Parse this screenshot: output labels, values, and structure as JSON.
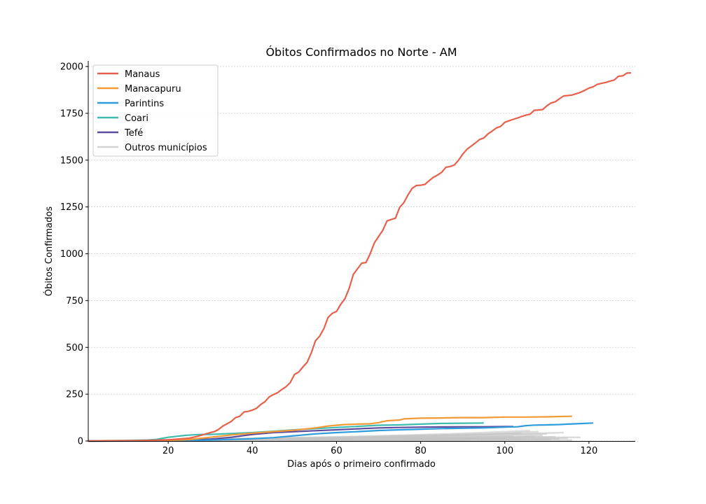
{
  "chart_data": {
    "type": "line",
    "title": "Óbitos Confirmados no Norte - AM",
    "xlabel": "Dias após o primeiro confirmado",
    "ylabel": "Óbitos Confirmados",
    "xlim": [
      1,
      131
    ],
    "ylim": [
      0,
      2030
    ],
    "xticks": [
      20,
      40,
      60,
      80,
      100,
      120
    ],
    "yticks": [
      0,
      250,
      500,
      750,
      1000,
      1250,
      1500,
      1750,
      2000
    ],
    "grid": "horizontal dashed",
    "legend_position": "top-left",
    "series": [
      {
        "name": "Manaus",
        "color": "#e8604c",
        "points": [
          [
            1,
            0
          ],
          [
            10,
            1
          ],
          [
            15,
            3
          ],
          [
            20,
            6
          ],
          [
            22,
            10
          ],
          [
            25,
            15
          ],
          [
            27,
            25
          ],
          [
            29,
            38
          ],
          [
            30,
            45
          ],
          [
            31,
            50
          ],
          [
            32,
            62
          ],
          [
            33,
            80
          ],
          [
            34,
            92
          ],
          [
            35,
            105
          ],
          [
            36,
            125
          ],
          [
            37,
            132
          ],
          [
            38,
            155
          ],
          [
            39,
            158
          ],
          [
            40,
            165
          ],
          [
            41,
            175
          ],
          [
            42,
            195
          ],
          [
            43,
            210
          ],
          [
            44,
            235
          ],
          [
            45,
            248
          ],
          [
            46,
            258
          ],
          [
            47,
            275
          ],
          [
            48,
            290
          ],
          [
            49,
            312
          ],
          [
            50,
            355
          ],
          [
            51,
            368
          ],
          [
            52,
            395
          ],
          [
            53,
            420
          ],
          [
            54,
            470
          ],
          [
            55,
            535
          ],
          [
            56,
            560
          ],
          [
            57,
            600
          ],
          [
            58,
            660
          ],
          [
            59,
            682
          ],
          [
            60,
            692
          ],
          [
            61,
            730
          ],
          [
            62,
            760
          ],
          [
            63,
            815
          ],
          [
            64,
            890
          ],
          [
            65,
            920
          ],
          [
            66,
            950
          ],
          [
            67,
            953
          ],
          [
            68,
            1000
          ],
          [
            69,
            1058
          ],
          [
            70,
            1092
          ],
          [
            71,
            1125
          ],
          [
            72,
            1175
          ],
          [
            73,
            1183
          ],
          [
            74,
            1190
          ],
          [
            75,
            1248
          ],
          [
            76,
            1273
          ],
          [
            77,
            1315
          ],
          [
            78,
            1350
          ],
          [
            79,
            1365
          ],
          [
            80,
            1366
          ],
          [
            81,
            1370
          ],
          [
            82,
            1390
          ],
          [
            83,
            1408
          ],
          [
            84,
            1420
          ],
          [
            85,
            1435
          ],
          [
            86,
            1462
          ],
          [
            87,
            1466
          ],
          [
            88,
            1474
          ],
          [
            89,
            1500
          ],
          [
            90,
            1532
          ],
          [
            91,
            1558
          ],
          [
            92,
            1575
          ],
          [
            93,
            1592
          ],
          [
            94,
            1610
          ],
          [
            95,
            1618
          ],
          [
            96,
            1640
          ],
          [
            97,
            1655
          ],
          [
            98,
            1672
          ],
          [
            99,
            1680
          ],
          [
            100,
            1702
          ],
          [
            101,
            1710
          ],
          [
            102,
            1718
          ],
          [
            103,
            1725
          ],
          [
            104,
            1733
          ],
          [
            105,
            1740
          ],
          [
            106,
            1745
          ],
          [
            107,
            1766
          ],
          [
            108,
            1768
          ],
          [
            109,
            1770
          ],
          [
            110,
            1790
          ],
          [
            111,
            1805
          ],
          [
            112,
            1812
          ],
          [
            113,
            1828
          ],
          [
            114,
            1843
          ],
          [
            115,
            1845
          ],
          [
            116,
            1848
          ],
          [
            117,
            1855
          ],
          [
            118,
            1862
          ],
          [
            119,
            1873
          ],
          [
            120,
            1885
          ],
          [
            121,
            1892
          ],
          [
            122,
            1905
          ],
          [
            123,
            1910
          ],
          [
            124,
            1915
          ],
          [
            125,
            1922
          ],
          [
            126,
            1928
          ],
          [
            127,
            1948
          ],
          [
            128,
            1950
          ],
          [
            129,
            1965
          ],
          [
            130,
            1966
          ]
        ]
      },
      {
        "name": "Manacapuru",
        "color": "#f39a35",
        "points": [
          [
            1,
            0
          ],
          [
            20,
            3
          ],
          [
            25,
            8
          ],
          [
            30,
            20
          ],
          [
            35,
            32
          ],
          [
            40,
            42
          ],
          [
            45,
            50
          ],
          [
            50,
            58
          ],
          [
            55,
            70
          ],
          [
            58,
            80
          ],
          [
            60,
            84
          ],
          [
            62,
            88
          ],
          [
            65,
            90
          ],
          [
            68,
            92
          ],
          [
            70,
            98
          ],
          [
            72,
            108
          ],
          [
            75,
            112
          ],
          [
            76,
            118
          ],
          [
            78,
            120
          ],
          [
            80,
            122
          ],
          [
            85,
            123
          ],
          [
            90,
            125
          ],
          [
            95,
            125
          ],
          [
            100,
            128
          ],
          [
            105,
            128
          ],
          [
            110,
            129
          ],
          [
            113,
            131
          ],
          [
            116,
            132
          ]
        ]
      },
      {
        "name": "Parintins",
        "color": "#2f9cdc",
        "points": [
          [
            1,
            0
          ],
          [
            20,
            1
          ],
          [
            30,
            5
          ],
          [
            40,
            12
          ],
          [
            45,
            18
          ],
          [
            50,
            28
          ],
          [
            55,
            38
          ],
          [
            60,
            45
          ],
          [
            65,
            50
          ],
          [
            70,
            56
          ],
          [
            75,
            60
          ],
          [
            80,
            63
          ],
          [
            85,
            66
          ],
          [
            90,
            68
          ],
          [
            95,
            70
          ],
          [
            100,
            74
          ],
          [
            103,
            76
          ],
          [
            105,
            82
          ],
          [
            107,
            85
          ],
          [
            110,
            86
          ],
          [
            113,
            88
          ],
          [
            115,
            90
          ],
          [
            118,
            93
          ],
          [
            121,
            96
          ]
        ]
      },
      {
        "name": "Coari",
        "color": "#3fbcb0",
        "points": [
          [
            1,
            0
          ],
          [
            10,
            2
          ],
          [
            15,
            5
          ],
          [
            17,
            8
          ],
          [
            18,
            12
          ],
          [
            20,
            20
          ],
          [
            22,
            25
          ],
          [
            24,
            30
          ],
          [
            26,
            33
          ],
          [
            28,
            35
          ],
          [
            30,
            35
          ],
          [
            35,
            40
          ],
          [
            40,
            45
          ],
          [
            45,
            52
          ],
          [
            50,
            60
          ],
          [
            55,
            66
          ],
          [
            60,
            72
          ],
          [
            65,
            78
          ],
          [
            70,
            84
          ],
          [
            75,
            86
          ],
          [
            80,
            90
          ],
          [
            85,
            94
          ],
          [
            90,
            95
          ],
          [
            95,
            96
          ]
        ]
      },
      {
        "name": "Tefé",
        "color": "#5d4c9e",
        "points": [
          [
            1,
            0
          ],
          [
            20,
            2
          ],
          [
            30,
            10
          ],
          [
            35,
            20
          ],
          [
            40,
            35
          ],
          [
            45,
            45
          ],
          [
            50,
            50
          ],
          [
            55,
            55
          ],
          [
            60,
            60
          ],
          [
            65,
            65
          ],
          [
            70,
            70
          ],
          [
            75,
            72
          ],
          [
            80,
            74
          ],
          [
            85,
            75
          ],
          [
            90,
            76
          ],
          [
            95,
            76
          ],
          [
            100,
            77
          ],
          [
            102,
            77
          ]
        ]
      }
    ],
    "others": {
      "name": "Outros municípios",
      "color": "#c4c4c4",
      "series": [
        [
          [
            1,
            0
          ],
          [
            40,
            8
          ],
          [
            80,
            20
          ],
          [
            118,
            20
          ]
        ],
        [
          [
            1,
            0
          ],
          [
            50,
            12
          ],
          [
            90,
            30
          ],
          [
            114,
            45
          ]
        ],
        [
          [
            1,
            0
          ],
          [
            45,
            10
          ],
          [
            85,
            25
          ],
          [
            110,
            38
          ]
        ],
        [
          [
            1,
            0
          ],
          [
            55,
            15
          ],
          [
            95,
            35
          ],
          [
            108,
            50
          ]
        ],
        [
          [
            1,
            0
          ],
          [
            60,
            20
          ],
          [
            90,
            40
          ],
          [
            106,
            55
          ]
        ],
        [
          [
            1,
            0
          ],
          [
            50,
            18
          ],
          [
            80,
            30
          ],
          [
            104,
            42
          ]
        ],
        [
          [
            1,
            0
          ],
          [
            40,
            6
          ],
          [
            75,
            14
          ],
          [
            112,
            22
          ]
        ],
        [
          [
            1,
            0
          ],
          [
            45,
            5
          ],
          [
            80,
            10
          ],
          [
            100,
            16
          ]
        ],
        [
          [
            1,
            0
          ],
          [
            35,
            3
          ],
          [
            70,
            8
          ],
          [
            96,
            12
          ]
        ],
        [
          [
            1,
            0
          ],
          [
            50,
            4
          ],
          [
            85,
            9
          ],
          [
            113,
            10
          ]
        ],
        [
          [
            1,
            0
          ],
          [
            60,
            6
          ],
          [
            90,
            12
          ],
          [
            115,
            15
          ]
        ],
        [
          [
            1,
            0
          ],
          [
            30,
            2
          ],
          [
            70,
            5
          ],
          [
            92,
            8
          ]
        ],
        [
          [
            1,
            0
          ],
          [
            55,
            7
          ],
          [
            88,
            18
          ],
          [
            102,
            26
          ]
        ],
        [
          [
            1,
            0
          ],
          [
            40,
            4
          ],
          [
            75,
            9
          ],
          [
            98,
            13
          ]
        ],
        [
          [
            1,
            0
          ],
          [
            65,
            10
          ],
          [
            95,
            22
          ],
          [
            109,
            30
          ]
        ],
        [
          [
            1,
            0
          ],
          [
            30,
            5
          ],
          [
            60,
            12
          ],
          [
            88,
            15
          ]
        ],
        [
          [
            1,
            0
          ],
          [
            50,
            2
          ],
          [
            80,
            4
          ],
          [
            116,
            5
          ]
        ],
        [
          [
            1,
            0
          ],
          [
            45,
            3
          ],
          [
            85,
            6
          ],
          [
            111,
            9
          ]
        ],
        [
          [
            1,
            0
          ],
          [
            70,
            6
          ],
          [
            100,
            18
          ],
          [
            107,
            24
          ]
        ],
        [
          [
            1,
            0
          ],
          [
            60,
            4
          ],
          [
            90,
            8
          ],
          [
            105,
            11
          ]
        ],
        [
          [
            1,
            0
          ],
          [
            40,
            3
          ],
          [
            80,
            7
          ],
          [
            95,
            10
          ]
        ],
        [
          [
            1,
            0
          ],
          [
            50,
            6
          ],
          [
            85,
            16
          ],
          [
            103,
            20
          ]
        ]
      ]
    }
  }
}
